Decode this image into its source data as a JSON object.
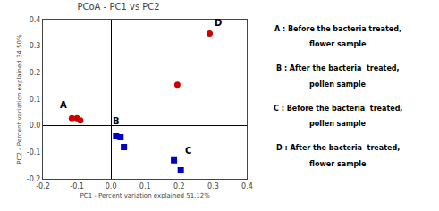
{
  "chart_data": {
    "type": "scatter",
    "title": "PCoA - PC1 vs PC2",
    "x_label": "PC1 - Percent variation explained 51.12%",
    "y_label": "PC2 - Percent variation explained 34.50%",
    "xlim": [
      -0.2,
      0.4
    ],
    "ylim": [
      -0.2,
      0.4
    ],
    "xticks": [
      -0.2,
      -0.1,
      {
        "value": 0.0,
        "label": "0.0"
      },
      0.1,
      0.2,
      0.3,
      0.4
    ],
    "yticks": [
      -0.2,
      -0.1,
      {
        "value": 0.0,
        "label": "0.0"
      },
      0.1,
      0.2,
      0.3,
      0.4
    ],
    "grid": false,
    "series": [
      {
        "color": "#cc0000",
        "marker": "circle",
        "x": [
          -0.115,
          -0.1,
          -0.09
        ],
        "values": [
          0.028,
          0.028,
          0.02
        ]
      },
      {
        "color": "#0000cc",
        "marker": "square",
        "x": [
          0.015,
          0.028,
          0.038
        ],
        "values": [
          -0.04,
          -0.043,
          -0.08
        ]
      },
      {
        "color": "#0000cc",
        "marker": "square",
        "x": [
          0.185,
          0.205
        ],
        "values": [
          -0.13,
          -0.168
        ]
      },
      {
        "color": "#cc0000",
        "marker": "circle",
        "x": [
          0.29
        ],
        "values": [
          0.348
        ]
      },
      {
        "color": "#cc0000",
        "marker": "circle",
        "x": [
          0.195
        ],
        "values": [
          0.155
        ]
      }
    ],
    "annotations": [
      {
        "text": "A",
        "x": -0.155,
        "y": 0.052
      },
      {
        "text": "B",
        "x": 0.0,
        "y": -0.008
      },
      {
        "text": "C",
        "x": 0.212,
        "y": -0.118
      },
      {
        "text": "D",
        "x": 0.298,
        "y": 0.362
      },
      {
        "text": "A : Before the bacteria treated,"
      },
      {
        "text": "flower sample"
      },
      {
        "text": "B : After the bacteria  treated,"
      },
      {
        "text": "pollen sample"
      },
      {
        "text": "C : Before the bacteria  treated,"
      },
      {
        "text": "pollen sample"
      },
      {
        "text": "D : After the bacteria  treated,"
      },
      {
        "text": "flower sample"
      }
    ]
  }
}
